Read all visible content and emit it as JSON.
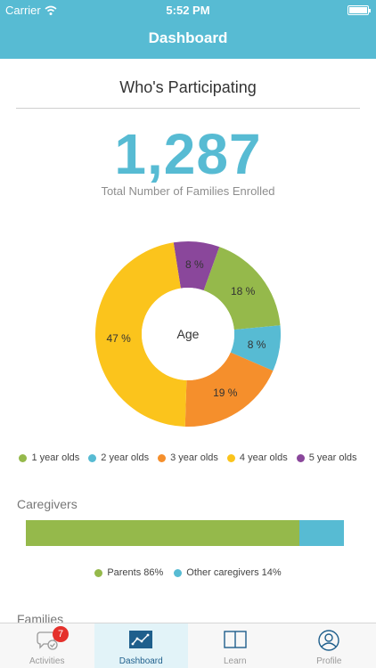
{
  "status_bar": {
    "carrier": "Carrier",
    "time": "5:52 PM"
  },
  "nav": {
    "title": "Dashboard"
  },
  "participation": {
    "title": "Who's Participating",
    "total": "1,287",
    "caption": "Total Number of Families Enrolled"
  },
  "chart_data": {
    "type": "pie",
    "title": "",
    "center_label": "Age",
    "categories": [
      "1 year olds",
      "2 year olds",
      "3 year olds",
      "4 year olds",
      "5 year olds"
    ],
    "values": [
      18,
      8,
      19,
      47,
      8
    ],
    "value_labels": [
      "18 %",
      "8 %",
      "19 %",
      "47 %",
      "8 %"
    ],
    "colors": [
      "#95b94b",
      "#57bbd3",
      "#f58f2c",
      "#fbc41c",
      "#8a479b"
    ],
    "slice_order": [
      4,
      0,
      1,
      2,
      3
    ],
    "legend_position": "bottom"
  },
  "caregivers": {
    "title": "Caregivers",
    "segments": [
      {
        "label": "Parents 86%",
        "value": 86,
        "color": "#95b94b"
      },
      {
        "label": "Other caregivers 14%",
        "value": 14,
        "color": "#57bbd3"
      }
    ]
  },
  "families": {
    "title": "Families"
  },
  "tabs": [
    {
      "label": "Activities",
      "icon": "chat-check-icon",
      "badge": "7"
    },
    {
      "label": "Dashboard",
      "icon": "chart-line-icon",
      "active": true
    },
    {
      "label": "Learn",
      "icon": "book-icon"
    },
    {
      "label": "Profile",
      "icon": "person-icon"
    }
  ]
}
